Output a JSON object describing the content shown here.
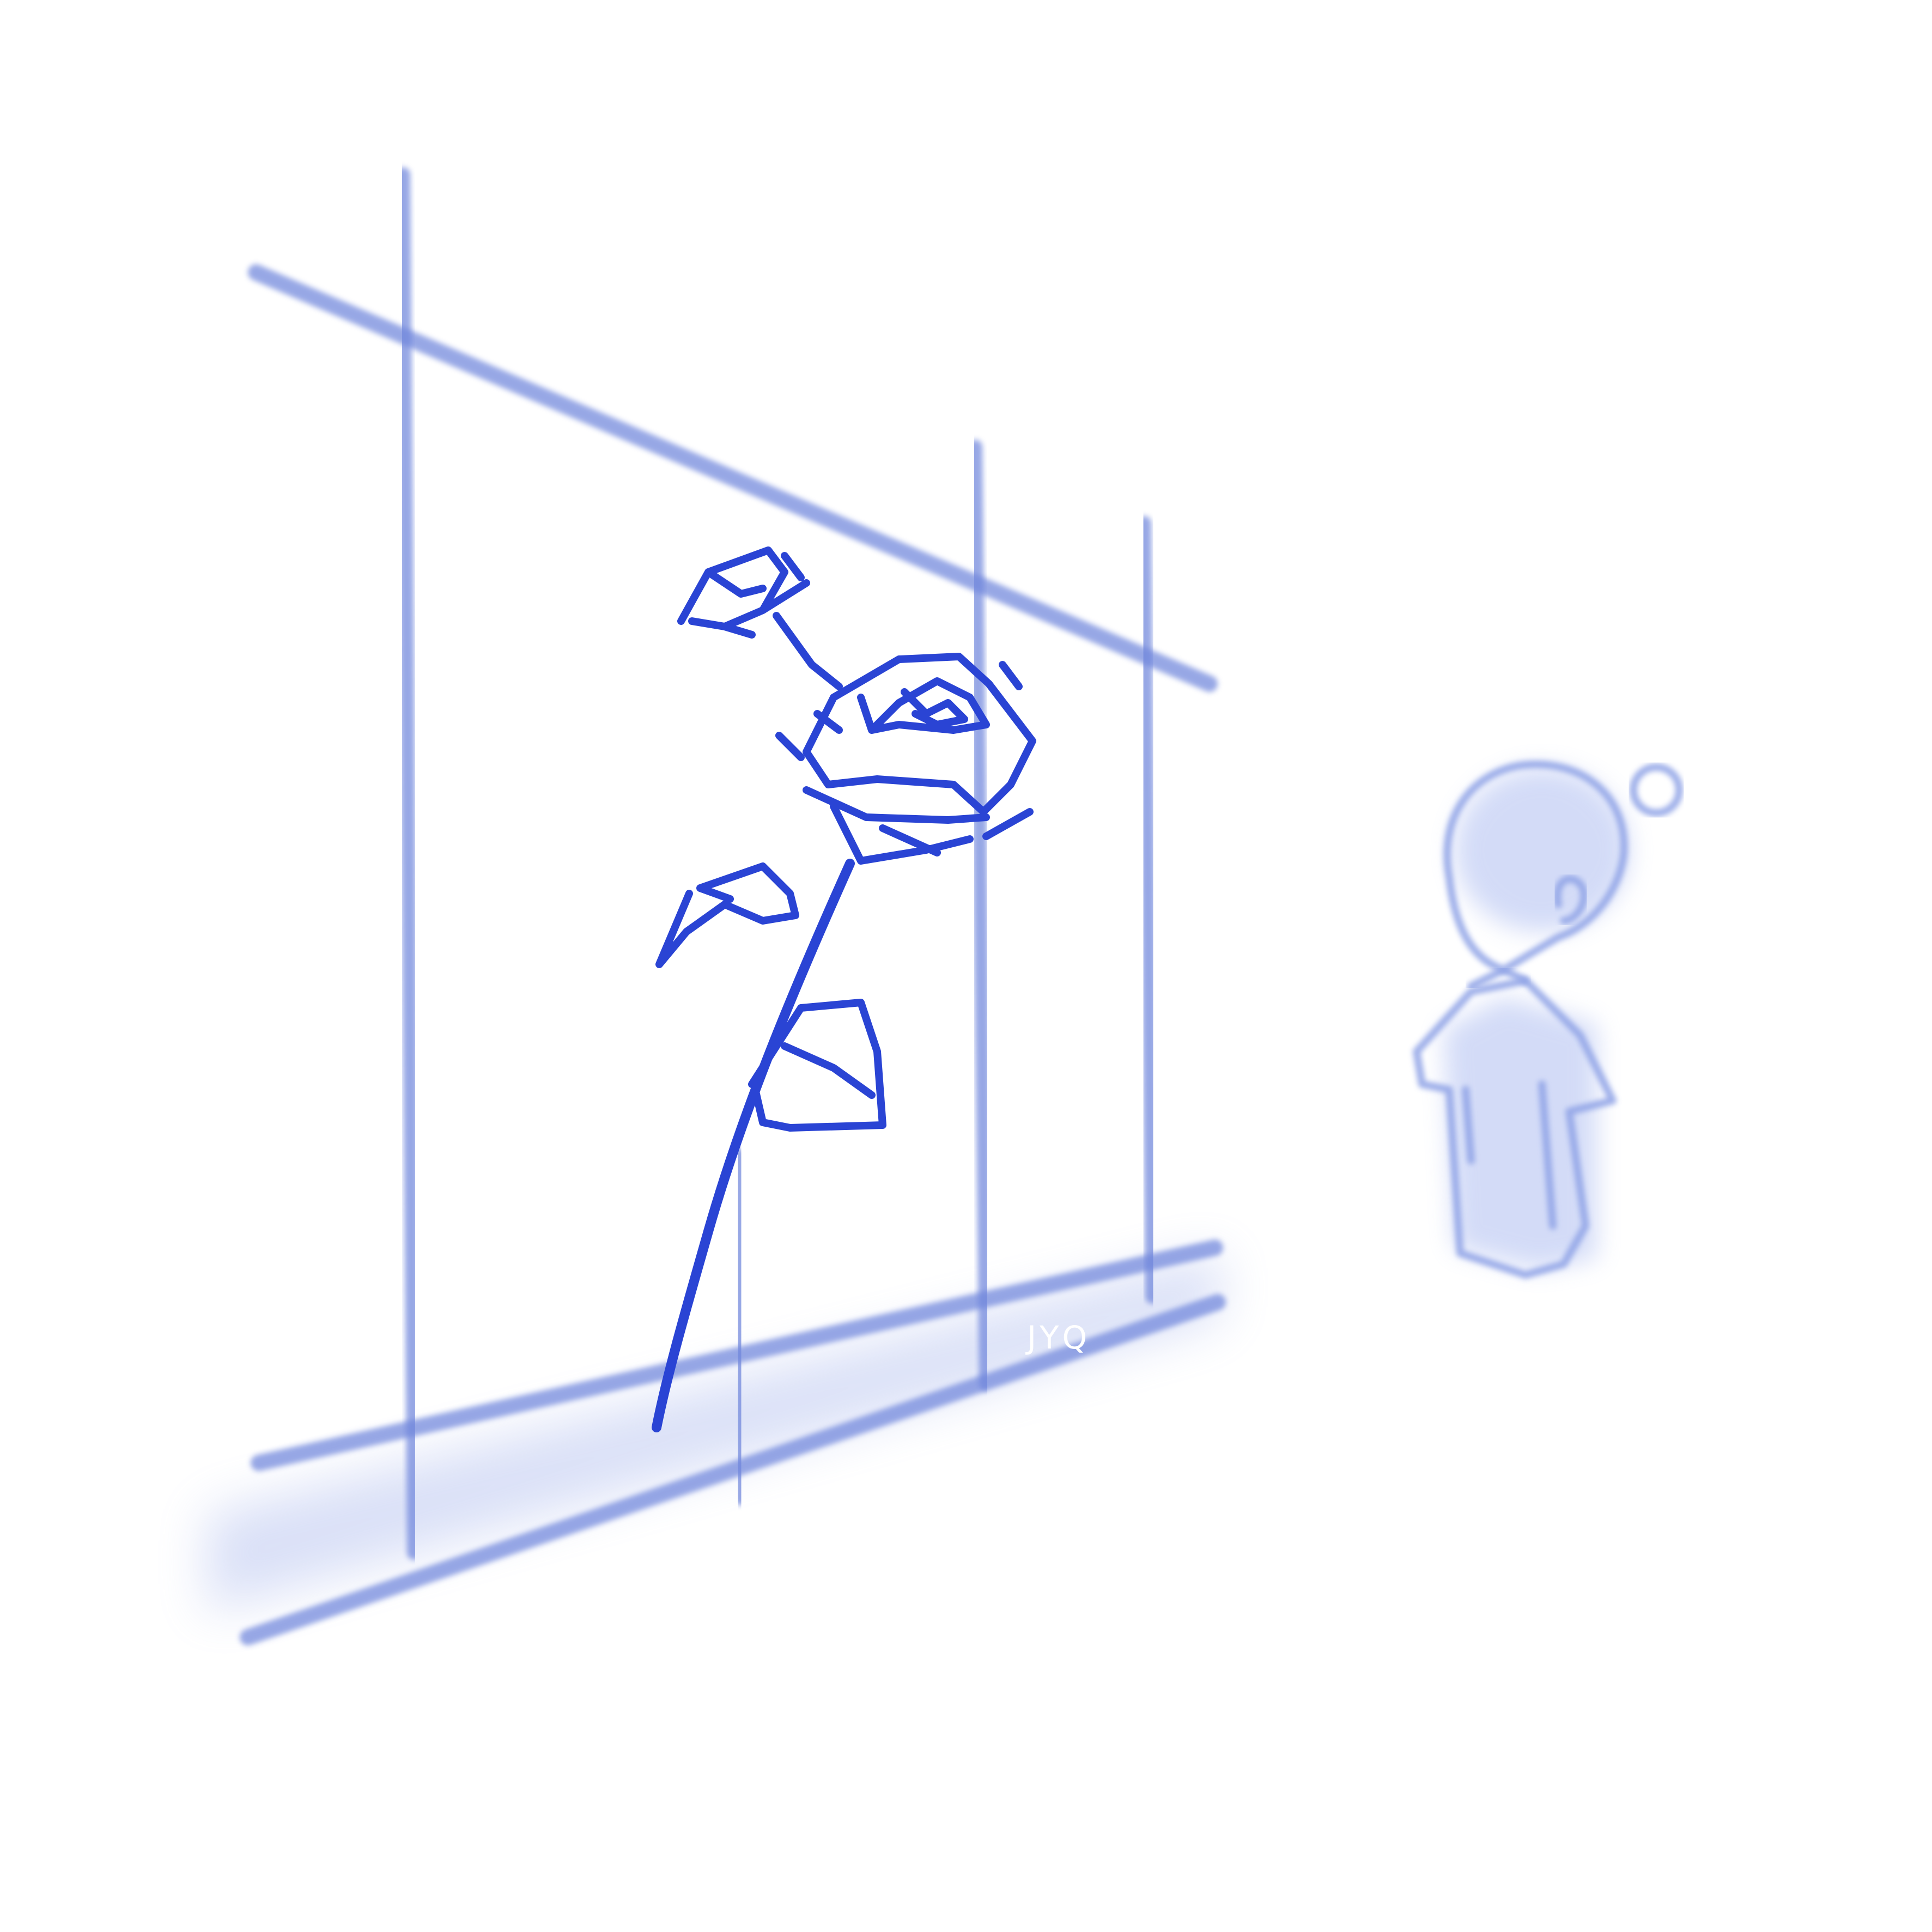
{
  "artwork": {
    "signature": "JYQ",
    "colors": {
      "ink": "#2a44d4",
      "wash": "#6f86dc",
      "background": "#ffffff"
    },
    "elements": [
      "fence",
      "rose",
      "figure"
    ]
  }
}
